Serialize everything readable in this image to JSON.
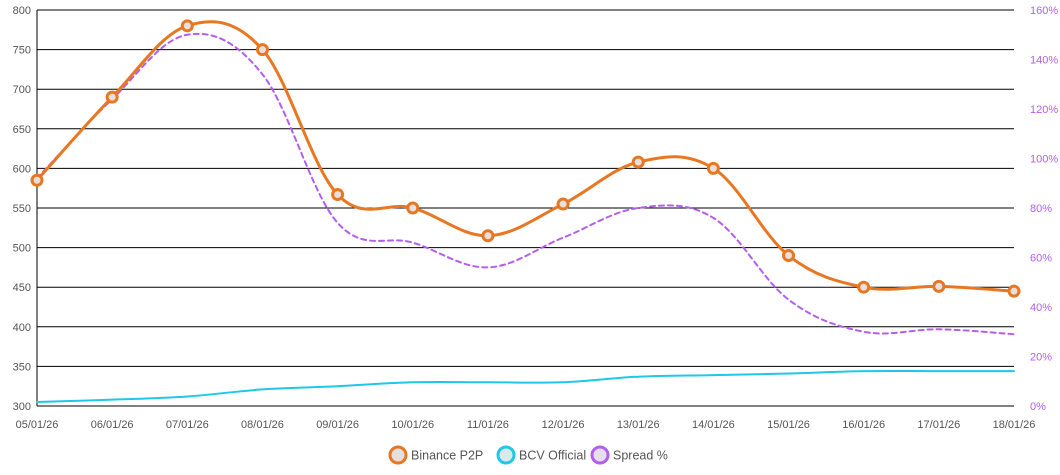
{
  "chart_data": {
    "type": "line",
    "title": "",
    "x": [
      "05/01/26",
      "06/01/26",
      "07/01/26",
      "08/01/26",
      "09/01/26",
      "10/01/26",
      "11/01/26",
      "12/01/26",
      "13/01/26",
      "14/01/26",
      "15/01/26",
      "16/01/26",
      "17/01/26",
      "18/01/26"
    ],
    "y_left": {
      "min": 300,
      "max": 800,
      "ticks": [
        300,
        350,
        400,
        450,
        500,
        550,
        600,
        650,
        700,
        750,
        800
      ]
    },
    "y_right": {
      "min": 0,
      "max": 160,
      "ticks": [
        "0%",
        "20%",
        "40%",
        "60%",
        "80%",
        "100%",
        "120%",
        "140%",
        "160%"
      ]
    },
    "grid": true,
    "legend_position": "bottom-center",
    "series": [
      {
        "name": "Binance P2P",
        "axis": "left",
        "color": "#e87722",
        "style": "solid",
        "markers": true,
        "values": [
          585,
          690,
          780,
          750,
          567,
          550,
          515,
          555,
          608,
          600,
          490,
          450,
          451,
          445
        ]
      },
      {
        "name": "BCV Official",
        "axis": "left",
        "color": "#1fc8e8",
        "style": "solid",
        "markers": false,
        "values": [
          305,
          308,
          312,
          321,
          325,
          330,
          330,
          330,
          337,
          339,
          341,
          344,
          344,
          344
        ]
      },
      {
        "name": "Spread %",
        "axis": "right",
        "color": "#b45ef0",
        "style": "dashed",
        "markers": false,
        "values": [
          92,
          124,
          150,
          134,
          74,
          66,
          56,
          68,
          80,
          76,
          43,
          30,
          31,
          29
        ]
      }
    ]
  }
}
